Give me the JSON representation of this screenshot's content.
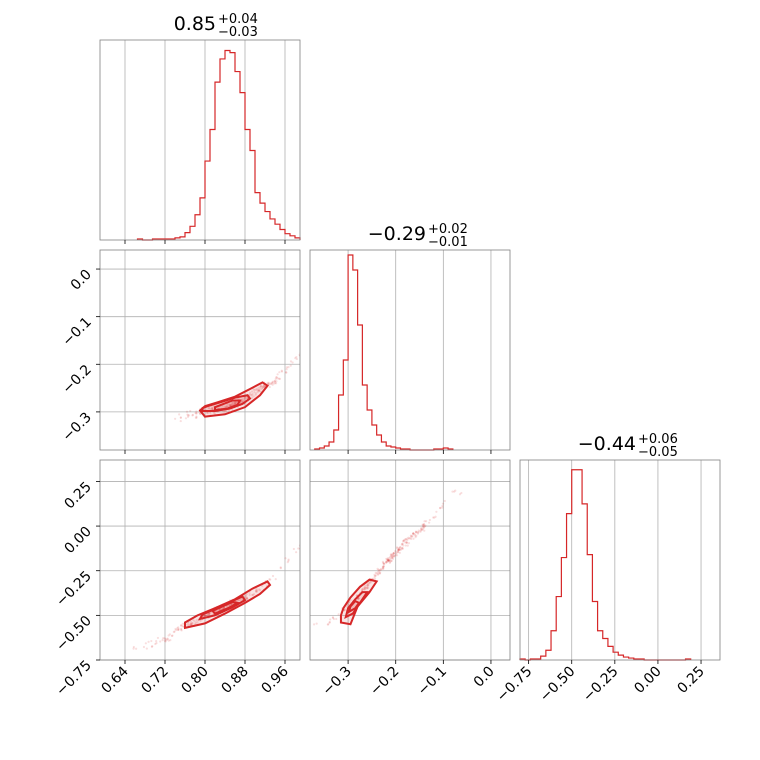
{
  "chart_data": {
    "type": "corner",
    "color": "#d62728",
    "diagonal": [
      {
        "title": {
          "value": "0.85",
          "upper": "+0.04",
          "lower": "−0.03"
        },
        "xlim": [
          0.59,
          0.99
        ],
        "bins": [
          0.665,
          0.675,
          0.695,
          0.725,
          0.74,
          0.75,
          0.76,
          0.77,
          0.78,
          0.79,
          0.8,
          0.81,
          0.82,
          0.83,
          0.84,
          0.85,
          0.86,
          0.87,
          0.88,
          0.89,
          0.9,
          0.91,
          0.92,
          0.93,
          0.94,
          0.95,
          0.96,
          0.97,
          0.98,
          0.99
        ],
        "counts": [
          1,
          0,
          1,
          1,
          2,
          3,
          7,
          13,
          24,
          40,
          75,
          105,
          150,
          172,
          180,
          178,
          160,
          140,
          105,
          85,
          45,
          35,
          27,
          20,
          15,
          10,
          6,
          4,
          2
        ],
        "ymax": 190
      },
      {
        "title": {
          "value": "−0.29",
          "upper": "+0.02",
          "lower": "−0.01"
        },
        "xlim": [
          -0.38,
          0.04
        ],
        "bins": [
          -0.37,
          -0.36,
          -0.35,
          -0.34,
          -0.33,
          -0.32,
          -0.31,
          -0.3,
          -0.29,
          -0.28,
          -0.27,
          -0.26,
          -0.25,
          -0.24,
          -0.23,
          -0.22,
          -0.21,
          -0.2,
          -0.19,
          -0.18,
          -0.17,
          -0.16,
          -0.15,
          -0.14,
          -0.13,
          -0.12,
          -0.11,
          -0.1,
          -0.09,
          -0.08
        ],
        "counts": [
          1,
          2,
          4,
          8,
          20,
          55,
          90,
          195,
          180,
          125,
          65,
          40,
          25,
          15,
          8,
          4,
          3,
          2,
          1,
          1,
          0,
          0,
          0,
          0,
          0,
          1,
          1,
          2,
          1
        ],
        "ymax": 200
      },
      {
        "title": {
          "value": "−0.44",
          "upper": "+0.06",
          "lower": "−0.05"
        },
        "xlim": [
          -0.8,
          0.36
        ],
        "bins": [
          -0.8,
          -0.77,
          -0.74,
          -0.71,
          -0.68,
          -0.65,
          -0.62,
          -0.59,
          -0.56,
          -0.53,
          -0.5,
          -0.47,
          -0.44,
          -0.41,
          -0.38,
          -0.35,
          -0.32,
          -0.29,
          -0.26,
          -0.23,
          -0.2,
          -0.17,
          -0.14,
          -0.11,
          -0.08,
          0.16,
          0.19
        ],
        "counts": [
          1,
          0,
          1,
          1,
          4,
          10,
          30,
          65,
          105,
          150,
          195,
          195,
          160,
          108,
          60,
          30,
          22,
          14,
          8,
          5,
          3,
          2,
          1,
          1,
          0,
          1
        ],
        "ymax": 205
      }
    ],
    "off_diagonal": [
      {
        "row": 1,
        "col": 0,
        "xlim": [
          0.59,
          0.99
        ],
        "ylim": [
          -0.38,
          0.04
        ],
        "trend": [
          [
            0.75,
            -0.31
          ],
          [
            0.78,
            -0.305
          ],
          [
            0.8,
            -0.3
          ],
          [
            0.82,
            -0.295
          ],
          [
            0.84,
            -0.29
          ],
          [
            0.86,
            -0.285
          ],
          [
            0.88,
            -0.275
          ],
          [
            0.9,
            -0.26
          ],
          [
            0.92,
            -0.245
          ],
          [
            0.94,
            -0.235
          ],
          [
            0.96,
            -0.215
          ],
          [
            0.98,
            -0.19
          ],
          [
            0.99,
            -0.18
          ]
        ],
        "contours": [
          [
            [
              0.795,
              -0.298
            ],
            [
              0.82,
              -0.298
            ],
            [
              0.85,
              -0.293
            ],
            [
              0.875,
              -0.283
            ],
            [
              0.89,
              -0.272
            ],
            [
              0.885,
              -0.265
            ],
            [
              0.86,
              -0.27
            ],
            [
              0.83,
              -0.28
            ],
            [
              0.805,
              -0.288
            ],
            [
              0.795,
              -0.292
            ]
          ],
          [
            [
              0.8,
              -0.31
            ],
            [
              0.84,
              -0.305
            ],
            [
              0.88,
              -0.29
            ],
            [
              0.91,
              -0.265
            ],
            [
              0.925,
              -0.245
            ],
            [
              0.915,
              -0.238
            ],
            [
              0.89,
              -0.252
            ],
            [
              0.86,
              -0.268
            ],
            [
              0.825,
              -0.28
            ],
            [
              0.8,
              -0.288
            ],
            [
              0.79,
              -0.297
            ]
          ],
          [
            [
              0.82,
              -0.296
            ],
            [
              0.845,
              -0.293
            ],
            [
              0.865,
              -0.285
            ],
            [
              0.87,
              -0.276
            ],
            [
              0.855,
              -0.276
            ],
            [
              0.835,
              -0.284
            ],
            [
              0.82,
              -0.29
            ]
          ]
        ]
      },
      {
        "row": 2,
        "col": 0,
        "xlim": [
          0.59,
          0.99
        ],
        "ylim": [
          -0.75,
          0.37
        ],
        "trend": [
          [
            0.67,
            -0.68
          ],
          [
            0.73,
            -0.62
          ],
          [
            0.75,
            -0.57
          ],
          [
            0.78,
            -0.54
          ],
          [
            0.8,
            -0.51
          ],
          [
            0.82,
            -0.48
          ],
          [
            0.84,
            -0.455
          ],
          [
            0.86,
            -0.43
          ],
          [
            0.88,
            -0.405
          ],
          [
            0.9,
            -0.37
          ],
          [
            0.92,
            -0.33
          ],
          [
            0.94,
            -0.28
          ],
          [
            0.96,
            -0.21
          ],
          [
            0.98,
            -0.12
          ]
        ],
        "contours": [
          [
            [
              0.76,
              -0.57
            ],
            [
              0.8,
              -0.545
            ],
            [
              0.84,
              -0.49
            ],
            [
              0.88,
              -0.43
            ],
            [
              0.91,
              -0.38
            ],
            [
              0.93,
              -0.33
            ],
            [
              0.925,
              -0.31
            ],
            [
              0.895,
              -0.35
            ],
            [
              0.86,
              -0.41
            ],
            [
              0.82,
              -0.46
            ],
            [
              0.785,
              -0.5
            ],
            [
              0.76,
              -0.54
            ]
          ],
          [
            [
              0.79,
              -0.52
            ],
            [
              0.82,
              -0.5
            ],
            [
              0.855,
              -0.455
            ],
            [
              0.88,
              -0.415
            ],
            [
              0.875,
              -0.395
            ],
            [
              0.85,
              -0.425
            ],
            [
              0.82,
              -0.465
            ],
            [
              0.795,
              -0.495
            ]
          ],
          [
            [
              0.82,
              -0.49
            ],
            [
              0.85,
              -0.455
            ],
            [
              0.865,
              -0.43
            ],
            [
              0.855,
              -0.425
            ],
            [
              0.835,
              -0.45
            ],
            [
              0.815,
              -0.475
            ]
          ]
        ]
      },
      {
        "row": 2,
        "col": 1,
        "xlim": [
          -0.38,
          0.04
        ],
        "ylim": [
          -0.75,
          0.37
        ],
        "trend": [
          [
            -0.36,
            -0.55
          ],
          [
            -0.34,
            -0.54
          ],
          [
            -0.32,
            -0.5
          ],
          [
            -0.3,
            -0.45
          ],
          [
            -0.28,
            -0.4
          ],
          [
            -0.26,
            -0.33
          ],
          [
            -0.24,
            -0.27
          ],
          [
            -0.22,
            -0.2
          ],
          [
            -0.2,
            -0.15
          ],
          [
            -0.17,
            -0.07
          ],
          [
            -0.14,
            0.0
          ],
          [
            -0.12,
            0.05
          ],
          [
            -0.08,
            0.19
          ]
        ],
        "contours": [
          [
            [
              -0.315,
              -0.54
            ],
            [
              -0.295,
              -0.55
            ],
            [
              -0.28,
              -0.45
            ],
            [
              -0.255,
              -0.37
            ],
            [
              -0.24,
              -0.31
            ],
            [
              -0.255,
              -0.3
            ],
            [
              -0.275,
              -0.34
            ],
            [
              -0.295,
              -0.4
            ],
            [
              -0.31,
              -0.46
            ],
            [
              -0.315,
              -0.5
            ]
          ],
          [
            [
              -0.305,
              -0.51
            ],
            [
              -0.29,
              -0.49
            ],
            [
              -0.275,
              -0.43
            ],
            [
              -0.26,
              -0.37
            ],
            [
              -0.27,
              -0.37
            ],
            [
              -0.285,
              -0.41
            ],
            [
              -0.3,
              -0.46
            ]
          ],
          [
            [
              -0.298,
              -0.48
            ],
            [
              -0.285,
              -0.46
            ],
            [
              -0.277,
              -0.43
            ],
            [
              -0.285,
              -0.42
            ],
            [
              -0.295,
              -0.45
            ]
          ]
        ]
      }
    ],
    "tick_labels": {
      "col0_x": {
        "values": [
          0.64,
          0.72,
          0.8,
          0.88,
          0.96
        ],
        "labels": [
          "0.64",
          "0.72",
          "0.80",
          "0.88",
          "0.96"
        ]
      },
      "col1_x": {
        "values": [
          -0.3,
          -0.2,
          -0.1,
          0.0
        ],
        "labels": [
          "−0.3",
          "−0.2",
          "−0.1",
          "0.0"
        ]
      },
      "col2_x": {
        "values": [
          -0.75,
          -0.5,
          -0.25,
          0.0,
          0.25
        ],
        "labels": [
          "−0.75",
          "−0.50",
          "−0.25",
          "0.00",
          "0.25"
        ]
      },
      "row1_y": {
        "values": [
          0.0,
          -0.1,
          -0.2,
          -0.3
        ],
        "labels": [
          "0.0",
          "−0.1",
          "−0.2",
          "−0.3"
        ]
      },
      "row2_y": {
        "values": [
          0.25,
          0.0,
          -0.25,
          -0.5,
          -0.75
        ],
        "labels": [
          "0.25",
          "0.00",
          "−0.25",
          "−0.50",
          "−0.75"
        ]
      }
    },
    "grid": true
  }
}
